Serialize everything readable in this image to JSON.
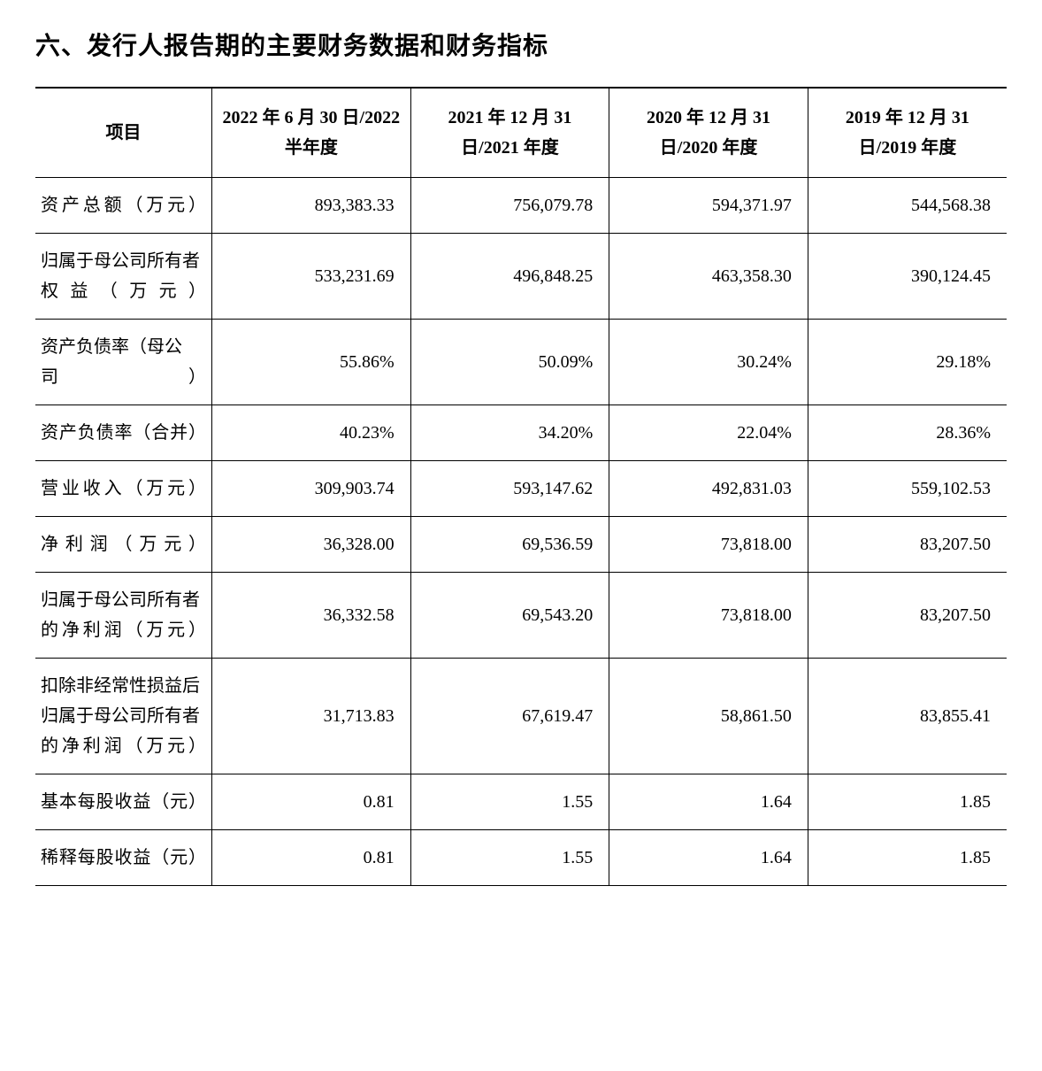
{
  "heading": "六、发行人报告期的主要财务数据和财务指标",
  "table": {
    "header": {
      "item_label": "项目",
      "periods": [
        "2022 年 6 月 30 日/2022 半年度",
        "2021 年 12 月 31 日/2021 年度",
        "2020 年 12 月 31 日/2020 年度",
        "2019 年 12 月 31 日/2019 年度"
      ]
    },
    "rows": [
      {
        "label": "资产总额（万元）",
        "values": [
          "893,383.33",
          "756,079.78",
          "594,371.97",
          "544,568.38"
        ]
      },
      {
        "label": "归属于母公司所有者权益（万元）",
        "values": [
          "533,231.69",
          "496,848.25",
          "463,358.30",
          "390,124.45"
        ]
      },
      {
        "label": "资产负债率（母公司）",
        "values": [
          "55.86%",
          "50.09%",
          "30.24%",
          "29.18%"
        ]
      },
      {
        "label": "资产负债率（合并）",
        "values": [
          "40.23%",
          "34.20%",
          "22.04%",
          "28.36%"
        ]
      },
      {
        "label": "营业收入（万元）",
        "values": [
          "309,903.74",
          "593,147.62",
          "492,831.03",
          "559,102.53"
        ]
      },
      {
        "label": "净利润（万元）",
        "values": [
          "36,328.00",
          "69,536.59",
          "73,818.00",
          "83,207.50"
        ]
      },
      {
        "label": "归属于母公司所有者的净利润（万元）",
        "values": [
          "36,332.58",
          "69,543.20",
          "73,818.00",
          "83,207.50"
        ]
      },
      {
        "label": "扣除非经常性损益后归属于母公司所有者的净利润（万元）",
        "values": [
          "31,713.83",
          "67,619.47",
          "58,861.50",
          "83,855.41"
        ]
      },
      {
        "label": "基本每股收益（元）",
        "values": [
          "0.81",
          "1.55",
          "1.64",
          "1.85"
        ]
      },
      {
        "label": "稀释每股收益（元）",
        "values": [
          "0.81",
          "1.55",
          "1.64",
          "1.85"
        ]
      }
    ]
  },
  "styling": {
    "background_color": "#ffffff",
    "text_color": "#000000",
    "border_color": "#000000",
    "heading_fontsize": 28,
    "cell_fontsize": 20,
    "heading_font": "SimHei",
    "body_font": "SimSun",
    "column_widths": {
      "label": 200,
      "period": 225
    },
    "top_border_width": 2,
    "inner_border_width": 1
  }
}
